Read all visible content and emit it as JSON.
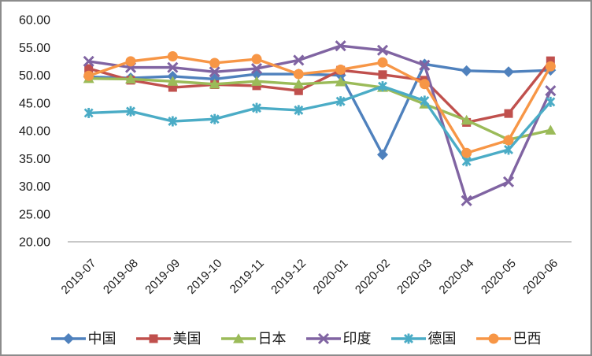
{
  "chart_data": {
    "type": "line",
    "categories": [
      "2019-07",
      "2019-08",
      "2019-09",
      "2019-10",
      "2019-11",
      "2019-12",
      "2020-01",
      "2020-02",
      "2020-03",
      "2020-04",
      "2020-05",
      "2020-06"
    ],
    "series": [
      {
        "name": "中国",
        "name_en": "china",
        "color": "#4F81BD",
        "marker": "diamond",
        "values": [
          49.7,
          49.5,
          49.8,
          49.3,
          50.2,
          50.2,
          50.0,
          35.7,
          52.0,
          50.8,
          50.6,
          50.9
        ]
      },
      {
        "name": "美国",
        "name_en": "usa",
        "color": "#C0504D",
        "marker": "square",
        "values": [
          51.2,
          49.1,
          47.8,
          48.3,
          48.1,
          47.2,
          50.9,
          50.1,
          49.1,
          41.5,
          43.1,
          52.6
        ]
      },
      {
        "name": "日本",
        "name_en": "japan",
        "color": "#9BBB59",
        "marker": "triangle",
        "values": [
          49.4,
          49.3,
          48.9,
          48.4,
          48.9,
          48.4,
          48.8,
          47.8,
          44.8,
          41.9,
          38.4,
          40.1
        ]
      },
      {
        "name": "印度",
        "name_en": "india",
        "color": "#8064A2",
        "marker": "x",
        "values": [
          52.5,
          51.4,
          51.4,
          50.6,
          51.2,
          52.7,
          55.3,
          54.5,
          51.8,
          27.4,
          30.8,
          47.2
        ]
      },
      {
        "name": "德国",
        "name_en": "germany",
        "color": "#4BACC6",
        "marker": "asterisk",
        "values": [
          43.2,
          43.5,
          41.7,
          42.1,
          44.1,
          43.7,
          45.3,
          48.0,
          45.4,
          34.5,
          36.6,
          45.2
        ]
      },
      {
        "name": "巴西",
        "name_en": "brazil",
        "color": "#F79646",
        "marker": "circle",
        "values": [
          49.9,
          52.5,
          53.4,
          52.2,
          52.9,
          50.2,
          51.0,
          52.3,
          48.4,
          36.0,
          38.3,
          51.6
        ]
      }
    ],
    "ylim": [
      20,
      60
    ],
    "ytick_labels": [
      "60.00",
      "55.00",
      "50.00",
      "45.00",
      "40.00",
      "35.00",
      "30.00",
      "25.00",
      "20.00"
    ],
    "grid": false,
    "legend_position": "bottom",
    "axis_line_color": "#A6A6A6",
    "frame_border_color": "#8C8C8C",
    "label_text_color": "#1A1A1A"
  }
}
